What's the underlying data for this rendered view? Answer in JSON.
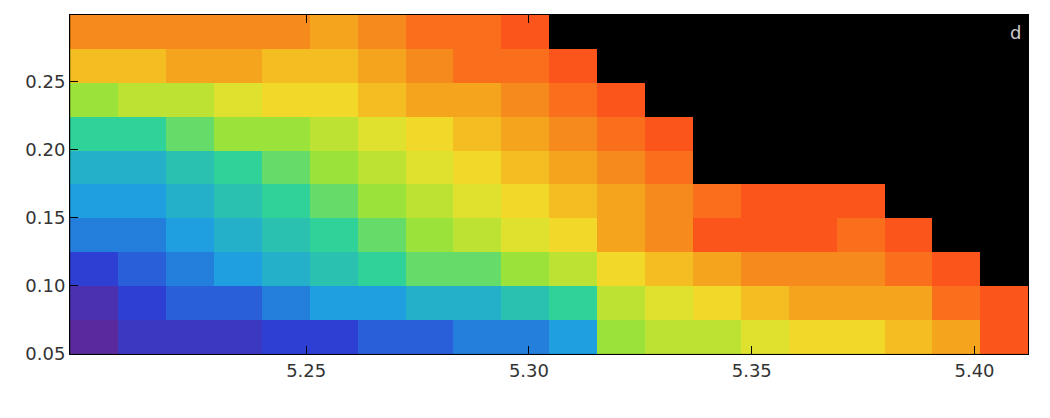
{
  "chart_data": {
    "type": "heatmap",
    "annotations": [
      "d"
    ],
    "x": [
      5.2024,
      5.2131,
      5.2239,
      5.2346,
      5.2454,
      5.2561,
      5.2669,
      5.2776,
      5.2884,
      5.2991,
      5.3099,
      5.3206,
      5.3314,
      5.3421,
      5.3529,
      5.3636,
      5.3744,
      5.3851,
      5.3959,
      5.4066
    ],
    "y": [
      0.0625,
      0.0874,
      0.1123,
      0.1372,
      0.1621,
      0.187,
      0.2119,
      0.2368,
      0.2617,
      0.2866
    ],
    "z": [
      [
        0.0,
        0.1,
        0.1,
        0.1,
        0.15,
        0.15,
        0.2,
        0.2,
        0.25,
        0.25,
        0.3,
        0.55,
        0.6,
        0.6,
        0.65,
        0.7,
        0.7,
        0.75,
        0.8,
        0.95
      ],
      [
        0.05,
        0.15,
        0.2,
        0.2,
        0.25,
        0.3,
        0.3,
        0.35,
        0.35,
        0.4,
        0.45,
        0.6,
        0.65,
        0.7,
        0.75,
        0.8,
        0.8,
        0.8,
        0.9,
        0.95
      ],
      [
        0.15,
        0.2,
        0.25,
        0.3,
        0.35,
        0.4,
        0.45,
        0.5,
        0.5,
        0.55,
        0.6,
        0.7,
        0.75,
        0.8,
        0.85,
        0.85,
        0.85,
        0.9,
        0.95,
        null
      ],
      [
        0.25,
        0.25,
        0.3,
        0.35,
        0.4,
        0.45,
        0.5,
        0.55,
        0.6,
        0.65,
        0.7,
        0.8,
        0.85,
        0.95,
        0.95,
        0.95,
        0.9,
        0.95,
        null,
        null
      ],
      [
        0.3,
        0.3,
        0.35,
        0.4,
        0.45,
        0.5,
        0.55,
        0.6,
        0.65,
        0.7,
        0.75,
        0.8,
        0.85,
        0.9,
        0.95,
        0.95,
        0.95,
        null,
        null,
        null
      ],
      [
        0.35,
        0.35,
        0.4,
        0.45,
        0.5,
        0.55,
        0.6,
        0.65,
        0.7,
        0.75,
        0.8,
        0.85,
        0.9,
        null,
        null,
        null,
        null,
        null,
        null,
        null
      ],
      [
        0.45,
        0.45,
        0.5,
        0.55,
        0.55,
        0.6,
        0.65,
        0.7,
        0.75,
        0.8,
        0.85,
        0.9,
        0.95,
        null,
        null,
        null,
        null,
        null,
        null,
        null
      ],
      [
        0.55,
        0.6,
        0.6,
        0.65,
        0.7,
        0.7,
        0.75,
        0.8,
        0.8,
        0.85,
        0.9,
        0.95,
        null,
        null,
        null,
        null,
        null,
        null,
        null,
        null
      ],
      [
        0.75,
        0.75,
        0.8,
        0.8,
        0.75,
        0.75,
        0.8,
        0.85,
        0.9,
        0.9,
        0.95,
        null,
        null,
        null,
        null,
        null,
        null,
        null,
        null,
        null
      ],
      [
        0.85,
        0.85,
        0.85,
        0.85,
        0.85,
        0.8,
        0.85,
        0.9,
        0.9,
        0.95,
        null,
        null,
        null,
        null,
        null,
        null,
        null,
        null,
        null,
        null
      ]
    ],
    "zlim": [
      0,
      1
    ],
    "xlim": [
      5.197,
      5.412
    ],
    "ylim": [
      0.05,
      0.299
    ],
    "xticks": [
      5.25,
      {
        "value": 5.3,
        "label": "5.30"
      },
      5.35,
      {
        "value": 5.4,
        "label": "5.40"
      }
    ],
    "yticks": [
      0.05,
      {
        "value": 0.1,
        "label": "0.10"
      },
      0.15,
      {
        "value": 0.2,
        "label": "0.20"
      },
      0.25
    ],
    "grid": false
  }
}
